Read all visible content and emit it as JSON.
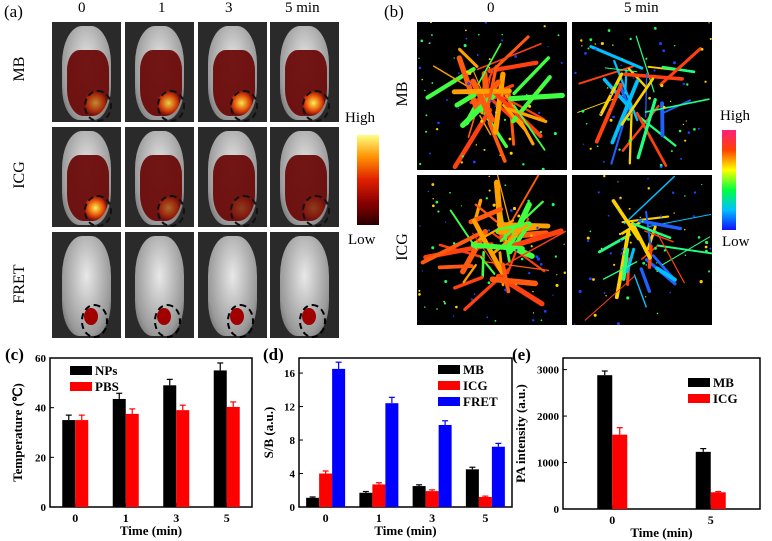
{
  "panel_a": {
    "label": "(a)",
    "columns": [
      "0",
      "1",
      "3",
      "5  min"
    ],
    "rows": [
      "MB",
      "ICG",
      "FRET"
    ],
    "colorbar": {
      "high": "High",
      "low": "Low",
      "colors": [
        "#2a0000",
        "#8b0000",
        "#e02000",
        "#ff9000",
        "#ffff80"
      ]
    }
  },
  "panel_b": {
    "label": "(b)",
    "columns": [
      "0",
      "5  min"
    ],
    "rows": [
      "MB",
      "ICG"
    ],
    "colorbar": {
      "high": "High",
      "low": "Low",
      "colors": [
        "#1010ff",
        "#00c0ff",
        "#00ff40",
        "#ffff00",
        "#ff4000",
        "#ff2080"
      ]
    }
  },
  "chart_data": [
    {
      "panel": "(c)",
      "type": "bar",
      "xlabel": "Time (min)",
      "ylabel": "Temperature (℃)",
      "categories": [
        "0",
        "1",
        "3",
        "5"
      ],
      "ylim": [
        0,
        60
      ],
      "yticks": [
        0,
        20,
        40,
        60
      ],
      "legend_position": "top-left",
      "series": [
        {
          "name": "NPs",
          "color": "#000000",
          "values": [
            35,
            43.5,
            49,
            55
          ],
          "errors": [
            2,
            2.3,
            2.4,
            3
          ]
        },
        {
          "name": "PBS",
          "color": "#ff0000",
          "values": [
            35,
            37.5,
            39,
            40.3
          ],
          "errors": [
            2,
            2,
            2,
            2
          ]
        }
      ]
    },
    {
      "panel": "(d)",
      "type": "bar",
      "xlabel": "Time (min)",
      "ylabel": "S/B (a.u.)",
      "categories": [
        "0",
        "1",
        "3",
        "5"
      ],
      "ylim": [
        0,
        17.8
      ],
      "yticks": [
        0,
        4,
        8,
        12,
        16
      ],
      "legend_position": "top-right",
      "series": [
        {
          "name": "MB",
          "color": "#000000",
          "values": [
            1.1,
            1.7,
            2.5,
            4.5
          ],
          "errors": [
            0.1,
            0.15,
            0.15,
            0.25
          ]
        },
        {
          "name": "ICG",
          "color": "#ff0000",
          "values": [
            4.0,
            2.7,
            1.9,
            1.2
          ],
          "errors": [
            0.3,
            0.2,
            0.15,
            0.1
          ]
        },
        {
          "name": "FRET",
          "color": "#0000ff",
          "values": [
            16.5,
            12.4,
            9.8,
            7.2
          ],
          "errors": [
            0.8,
            0.7,
            0.5,
            0.4
          ]
        }
      ]
    },
    {
      "panel": "(e)",
      "type": "bar",
      "xlabel": "Time (min)",
      "ylabel": "PA intensity (a.u.)",
      "categories": [
        "0",
        "5"
      ],
      "ylim": [
        0,
        3250
      ],
      "yticks": [
        0,
        1000,
        2000,
        3000
      ],
      "legend_position": "top-right",
      "series": [
        {
          "name": "MB",
          "color": "#000000",
          "values": [
            2880,
            1230
          ],
          "errors": [
            90,
            70
          ]
        },
        {
          "name": "ICG",
          "color": "#ff0000",
          "values": [
            1600,
            360
          ],
          "errors": [
            150,
            15
          ]
        }
      ]
    }
  ]
}
